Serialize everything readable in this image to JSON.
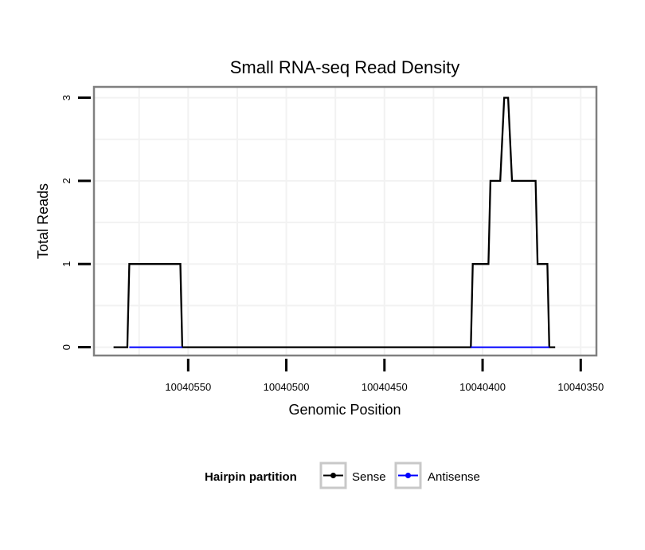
{
  "chart_data": {
    "type": "line",
    "title": "Small RNA-seq Read Density",
    "xlabel": "Genomic Position",
    "ylabel": "Total Reads",
    "xlim": [
      10040598,
      10040342
    ],
    "ylim": [
      -0.1,
      3.13
    ],
    "x_reversed": true,
    "grid": true,
    "x_ticks": [
      10040550,
      10040500,
      10040450,
      10040400,
      10040350
    ],
    "x_tick_labels": [
      "10040550",
      "10040500",
      "10040450",
      "10040400",
      "10040350"
    ],
    "y_ticks": [
      0,
      1,
      2,
      3
    ],
    "y_tick_labels": [
      "0",
      "1",
      "2",
      "3"
    ],
    "series": [
      {
        "name": "Sense",
        "color": "#000000",
        "points": [
          [
            10040588,
            0
          ],
          [
            10040581,
            0
          ],
          [
            10040580,
            1
          ],
          [
            10040554,
            1
          ],
          [
            10040553,
            0
          ],
          [
            10040406,
            0
          ],
          [
            10040405,
            1
          ],
          [
            10040397,
            1
          ],
          [
            10040396,
            2
          ],
          [
            10040391,
            2
          ],
          [
            10040389,
            3
          ],
          [
            10040387,
            3
          ],
          [
            10040385,
            2
          ],
          [
            10040373,
            2
          ],
          [
            10040372,
            1
          ],
          [
            10040367,
            1
          ],
          [
            10040366,
            0
          ],
          [
            10040363,
            0
          ]
        ]
      },
      {
        "name": "Antisense",
        "color": "#0000ff",
        "segments": [
          [
            [
              10040580,
              0
            ],
            [
              10040553,
              0
            ]
          ],
          [
            [
              10040406,
              0
            ],
            [
              10040366,
              0
            ]
          ]
        ]
      }
    ],
    "legend": {
      "title": "Hairpin partition",
      "position": "bottom",
      "entries": [
        {
          "label": "Sense",
          "color": "#000000"
        },
        {
          "label": "Antisense",
          "color": "#0000ff"
        }
      ]
    }
  }
}
